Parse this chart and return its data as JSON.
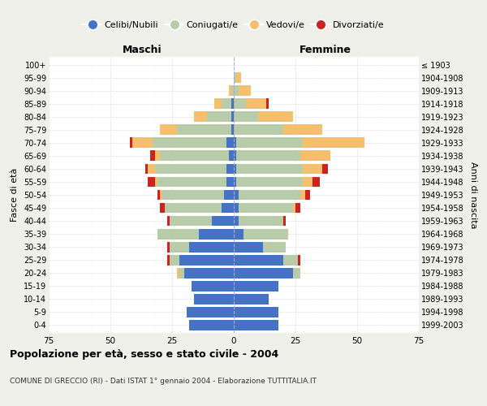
{
  "age_groups": [
    "0-4",
    "5-9",
    "10-14",
    "15-19",
    "20-24",
    "25-29",
    "30-34",
    "35-39",
    "40-44",
    "45-49",
    "50-54",
    "55-59",
    "60-64",
    "65-69",
    "70-74",
    "75-79",
    "80-84",
    "85-89",
    "90-94",
    "95-99",
    "100+"
  ],
  "birth_years": [
    "1999-2003",
    "1994-1998",
    "1989-1993",
    "1984-1988",
    "1979-1983",
    "1974-1978",
    "1969-1973",
    "1964-1968",
    "1959-1963",
    "1954-1958",
    "1949-1953",
    "1944-1948",
    "1939-1943",
    "1934-1938",
    "1929-1933",
    "1924-1928",
    "1919-1923",
    "1914-1918",
    "1909-1913",
    "1904-1908",
    "≤ 1903"
  ],
  "male": {
    "celibi": [
      18,
      19,
      16,
      17,
      20,
      22,
      18,
      14,
      9,
      5,
      4,
      3,
      3,
      2,
      3,
      1,
      1,
      1,
      0,
      0,
      0
    ],
    "coniugati": [
      0,
      0,
      0,
      0,
      2,
      4,
      8,
      17,
      17,
      23,
      25,
      28,
      29,
      28,
      30,
      22,
      10,
      4,
      1,
      0,
      0
    ],
    "vedovi": [
      0,
      0,
      0,
      0,
      1,
      0,
      0,
      0,
      0,
      0,
      1,
      1,
      3,
      2,
      8,
      7,
      5,
      3,
      1,
      0,
      0
    ],
    "divorziati": [
      0,
      0,
      0,
      0,
      0,
      1,
      1,
      0,
      1,
      2,
      1,
      3,
      1,
      2,
      1,
      0,
      0,
      0,
      0,
      0,
      0
    ]
  },
  "female": {
    "nubili": [
      18,
      18,
      14,
      18,
      24,
      20,
      12,
      4,
      2,
      2,
      2,
      1,
      1,
      1,
      1,
      0,
      0,
      0,
      0,
      0,
      0
    ],
    "coniugate": [
      0,
      0,
      0,
      0,
      3,
      6,
      9,
      18,
      18,
      22,
      25,
      27,
      27,
      26,
      27,
      20,
      10,
      5,
      2,
      1,
      0
    ],
    "vedove": [
      0,
      0,
      0,
      0,
      0,
      0,
      0,
      0,
      0,
      1,
      2,
      4,
      8,
      12,
      25,
      16,
      14,
      8,
      5,
      2,
      0
    ],
    "divorziate": [
      0,
      0,
      0,
      0,
      0,
      1,
      0,
      0,
      1,
      2,
      2,
      3,
      2,
      0,
      0,
      0,
      0,
      1,
      0,
      0,
      0
    ]
  },
  "colors": {
    "celibi": "#4472c4",
    "coniugati": "#b8ccaa",
    "vedovi": "#f5c06e",
    "divorziati": "#cc2222"
  },
  "title": "Popolazione per età, sesso e stato civile - 2004",
  "subtitle": "COMUNE DI GRECCIO (RI) - Dati ISTAT 1° gennaio 2004 - Elaborazione TUTTITALIA.IT",
  "xlabel_left": "Maschi",
  "xlabel_right": "Femmine",
  "ylabel_left": "Fasce di età",
  "ylabel_right": "Anni di nascita",
  "xlim": 75,
  "bg_color": "#f0f0eb",
  "plot_bg": "#ffffff",
  "legend_labels": [
    "Celibi/Nubili",
    "Coniugati/e",
    "Vedovi/e",
    "Divorziati/e"
  ]
}
